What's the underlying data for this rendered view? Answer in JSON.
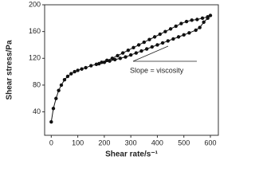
{
  "chart_data": {
    "type": "line",
    "x_label": "Shear rate/s⁻¹",
    "y_label": "Shear stress/Pa",
    "annotation": "Slope = viscosity",
    "x": [
      0,
      8,
      18,
      28,
      38,
      50,
      62,
      75,
      88,
      100,
      115,
      130,
      150,
      170,
      190,
      210,
      230,
      250,
      270,
      290,
      310,
      330,
      350,
      370,
      390,
      410,
      430,
      450,
      470,
      490,
      510,
      530,
      550,
      570,
      590,
      600,
      590,
      575,
      560,
      545,
      520,
      500,
      480,
      460,
      440,
      420,
      400,
      380,
      360,
      340,
      320,
      300,
      280,
      260,
      240,
      220,
      200,
      180
    ],
    "values": [
      25,
      45,
      60,
      72,
      80,
      88,
      93,
      97,
      100,
      102,
      104,
      106,
      109,
      111,
      114,
      117,
      120,
      124,
      128,
      132,
      136,
      140,
      144,
      148,
      152,
      156,
      160,
      164,
      168,
      172,
      175,
      177,
      178,
      180,
      182,
      184,
      180,
      174,
      166,
      162,
      158,
      155,
      152,
      149,
      146,
      143,
      140,
      137,
      134,
      131,
      128,
      125,
      122,
      120,
      118,
      116,
      114,
      112
    ],
    "color": "#111111",
    "xlim": [
      -25,
      630
    ],
    "ylim": [
      5,
      200
    ],
    "xticks": [
      0,
      100,
      200,
      300,
      400,
      500,
      600
    ],
    "yticks": [
      40,
      80,
      120,
      160,
      200
    ]
  }
}
